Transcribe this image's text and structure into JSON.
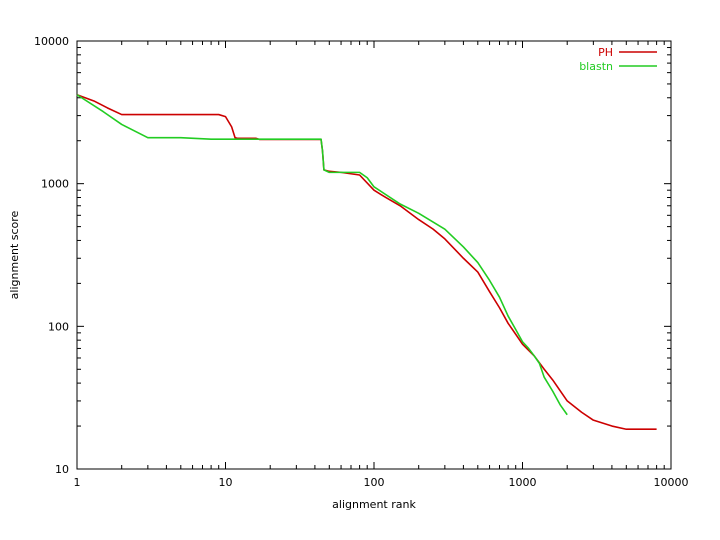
{
  "chart_data": {
    "type": "line",
    "title": "",
    "xlabel": "alignment rank",
    "ylabel": "alignment score",
    "xscale": "log",
    "yscale": "log",
    "xlim": [
      1,
      10000
    ],
    "ylim": [
      10,
      10000
    ],
    "x_ticks": [
      1,
      10,
      100,
      1000,
      10000
    ],
    "x_tick_labels": [
      "1",
      "10",
      "100",
      "1000",
      "10000"
    ],
    "y_ticks": [
      10,
      100,
      1000,
      10000
    ],
    "y_tick_labels": [
      "10",
      "100",
      "1000",
      "10000"
    ],
    "grid": false,
    "legend_position": "top-right",
    "series": [
      {
        "name": "PH",
        "color": "#cc0000",
        "points": [
          [
            1,
            4200
          ],
          [
            1.3,
            3800
          ],
          [
            1.6,
            3400
          ],
          [
            2,
            3050
          ],
          [
            4,
            3050
          ],
          [
            9,
            3050
          ],
          [
            10,
            2950
          ],
          [
            11,
            2500
          ],
          [
            11.6,
            2100
          ],
          [
            12,
            2080
          ],
          [
            16,
            2080
          ],
          [
            17,
            2040
          ],
          [
            44,
            2040
          ],
          [
            45,
            1700
          ],
          [
            46,
            1250
          ],
          [
            50,
            1220
          ],
          [
            60,
            1200
          ],
          [
            80,
            1150
          ],
          [
            100,
            900
          ],
          [
            120,
            800
          ],
          [
            150,
            700
          ],
          [
            200,
            560
          ],
          [
            250,
            480
          ],
          [
            300,
            410
          ],
          [
            400,
            300
          ],
          [
            500,
            240
          ],
          [
            600,
            175
          ],
          [
            700,
            135
          ],
          [
            800,
            105
          ],
          [
            900,
            88
          ],
          [
            1000,
            75
          ],
          [
            1200,
            62
          ],
          [
            1400,
            50
          ],
          [
            1600,
            42
          ],
          [
            2000,
            30
          ],
          [
            2500,
            25
          ],
          [
            3000,
            22
          ],
          [
            4000,
            20
          ],
          [
            5000,
            19
          ],
          [
            8000,
            19
          ]
        ]
      },
      {
        "name": "blastn",
        "color": "#22cc22",
        "points": [
          [
            1,
            4200
          ],
          [
            1.5,
            3200
          ],
          [
            2,
            2600
          ],
          [
            3,
            2100
          ],
          [
            5,
            2100
          ],
          [
            8,
            2050
          ],
          [
            10,
            2050
          ],
          [
            20,
            2050
          ],
          [
            44,
            2050
          ],
          [
            45,
            1700
          ],
          [
            46,
            1250
          ],
          [
            50,
            1200
          ],
          [
            80,
            1200
          ],
          [
            90,
            1100
          ],
          [
            100,
            950
          ],
          [
            150,
            720
          ],
          [
            200,
            620
          ],
          [
            300,
            480
          ],
          [
            400,
            360
          ],
          [
            500,
            280
          ],
          [
            600,
            210
          ],
          [
            700,
            160
          ],
          [
            800,
            118
          ],
          [
            900,
            95
          ],
          [
            1000,
            78
          ],
          [
            1100,
            70
          ],
          [
            1200,
            62
          ],
          [
            1300,
            55
          ],
          [
            1400,
            44
          ],
          [
            1600,
            35
          ],
          [
            1800,
            28
          ],
          [
            2000,
            24
          ]
        ]
      }
    ]
  }
}
